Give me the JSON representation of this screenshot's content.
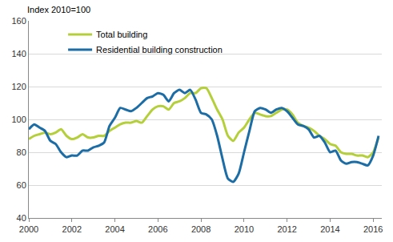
{
  "chart_data": {
    "type": "line",
    "y_label": "Index 2010=100",
    "x": [
      2000,
      2000.25,
      2000.5,
      2000.75,
      2001,
      2001.25,
      2001.5,
      2001.75,
      2002,
      2002.25,
      2002.5,
      2002.75,
      2003,
      2003.25,
      2003.5,
      2003.75,
      2004,
      2004.25,
      2004.5,
      2004.75,
      2005,
      2005.25,
      2005.5,
      2005.75,
      2006,
      2006.25,
      2006.5,
      2006.75,
      2007,
      2007.25,
      2007.5,
      2007.75,
      2008,
      2008.25,
      2008.5,
      2008.75,
      2009,
      2009.25,
      2009.5,
      2009.75,
      2010,
      2010.25,
      2010.5,
      2010.75,
      2011,
      2011.25,
      2011.5,
      2011.75,
      2012,
      2012.25,
      2012.5,
      2012.75,
      2013,
      2013.25,
      2013.5,
      2013.75,
      2014,
      2014.25,
      2014.5,
      2014.75,
      2015,
      2015.25,
      2015.5,
      2015.75,
      2016,
      2016.25
    ],
    "series": [
      {
        "name": "Total building",
        "color": "#b5cf3a",
        "values": [
          88,
          90,
          91,
          92,
          91,
          92,
          94,
          90,
          88,
          89,
          91,
          89,
          89,
          90,
          90,
          93,
          95,
          97,
          98,
          98,
          99,
          98,
          102,
          106,
          108,
          108,
          106,
          110,
          111,
          113,
          116,
          116,
          119,
          119,
          113,
          106,
          100,
          90,
          87,
          92,
          95,
          100,
          104,
          103,
          102,
          102,
          104,
          106,
          106,
          103,
          98,
          96,
          95,
          93,
          90,
          88,
          85,
          84,
          80,
          79,
          79,
          78,
          78,
          77,
          80,
          89
        ]
      },
      {
        "name": "Residential building construction",
        "color": "#1c6da6",
        "values": [
          94,
          97,
          95,
          93,
          87,
          85,
          80,
          77,
          78,
          78,
          81,
          81,
          83,
          84,
          86,
          96,
          101,
          107,
          106,
          105,
          107,
          110,
          113,
          114,
          116,
          115,
          111,
          116,
          118,
          116,
          118,
          112,
          104,
          103,
          100,
          90,
          76,
          64,
          62,
          67,
          80,
          93,
          105,
          107,
          106,
          104,
          106,
          107,
          105,
          101,
          97,
          96,
          94,
          89,
          90,
          86,
          80,
          81,
          75,
          73,
          74,
          74,
          73,
          72,
          78,
          90
        ]
      }
    ],
    "xlim": [
      2000,
      2016.4
    ],
    "xticks": [
      2000,
      2002,
      2004,
      2006,
      2008,
      2010,
      2012,
      2014,
      2016
    ],
    "ylim": [
      40,
      160
    ],
    "yticks": [
      40,
      60,
      80,
      100,
      120,
      140,
      160
    ],
    "grid": true,
    "legend": "upper left"
  }
}
